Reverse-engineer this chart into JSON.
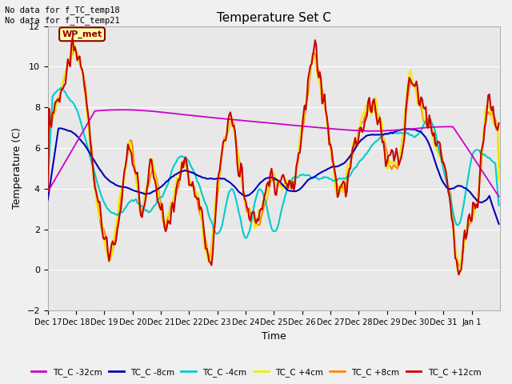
{
  "title": "Temperature Set C",
  "xlabel": "Time",
  "ylabel": "Temperature (C)",
  "ylim": [
    -2,
    12
  ],
  "yticks": [
    -2,
    0,
    2,
    4,
    6,
    8,
    10,
    12
  ],
  "figsize": [
    6.4,
    4.8
  ],
  "dpi": 100,
  "fig_bg": "#f0f0f0",
  "plot_bg": "#e8e8e8",
  "grid_color": "#ffffff",
  "annotation_text": "No data for f_TC_temp18\nNo data for f_TC_temp21",
  "wp_met_label": "WP_met",
  "series_order": [
    "TC_C -32cm",
    "TC_C -8cm",
    "TC_C -4cm",
    "TC_C +4cm",
    "TC_C +8cm",
    "TC_C +12cm"
  ],
  "series_colors": {
    "TC_C -32cm": "#cc00cc",
    "TC_C -8cm": "#0000bb",
    "TC_C -4cm": "#00cccc",
    "TC_C +4cm": "#eeee00",
    "TC_C +8cm": "#ff8800",
    "TC_C +12cm": "#cc0000"
  },
  "series_lw": {
    "TC_C -32cm": 1.3,
    "TC_C -8cm": 1.5,
    "TC_C -4cm": 1.5,
    "TC_C +4cm": 1.5,
    "TC_C +8cm": 1.5,
    "TC_C +12cm": 1.5
  },
  "legend_entries": [
    {
      "label": "TC_C -32cm",
      "color": "#cc00cc"
    },
    {
      "label": "TC_C -8cm",
      "color": "#0000bb"
    },
    {
      "label": "TC_C -4cm",
      "color": "#00cccc"
    },
    {
      "label": "TC_C +4cm",
      "color": "#eeee00"
    },
    {
      "label": "TC_C +8cm",
      "color": "#ff8800"
    },
    {
      "label": "TC_C +12cm",
      "color": "#cc0000"
    }
  ]
}
